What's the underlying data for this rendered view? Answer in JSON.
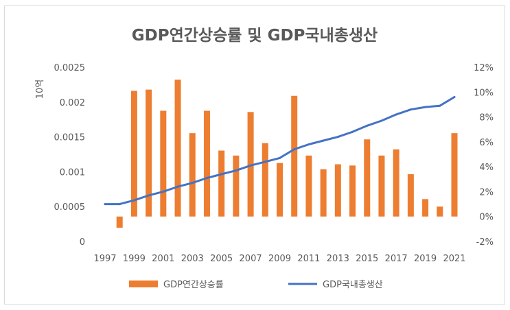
{
  "chart_data": {
    "type": "bar+line",
    "title": "GDP연간상승률 및 GDP국내총생산",
    "left_axis_label": "10억",
    "categories": [
      1997,
      1998,
      1999,
      2000,
      2001,
      2002,
      2003,
      2004,
      2005,
      2006,
      2007,
      2008,
      2009,
      2010,
      2011,
      2012,
      2013,
      2014,
      2015,
      2016,
      2017,
      2018,
      2019,
      2020,
      2021
    ],
    "x_tick_labels": [
      "1997",
      "1999",
      "2001",
      "2003",
      "2005",
      "2007",
      "2009",
      "2011",
      "2013",
      "2015",
      "2017",
      "2019",
      "2021"
    ],
    "series": [
      {
        "name": "GDP연간상승률",
        "type": "bar",
        "axis": "right",
        "color": "#ED7D31",
        "values": [
          null,
          -0.9,
          10.1,
          10.2,
          8.5,
          11.0,
          6.7,
          8.5,
          5.3,
          4.9,
          8.4,
          5.9,
          4.3,
          9.7,
          4.9,
          3.8,
          4.2,
          4.1,
          6.2,
          4.9,
          5.4,
          3.4,
          1.4,
          0.8,
          6.7
        ]
      },
      {
        "name": "GDP국내총생산",
        "type": "line",
        "axis": "right",
        "color": "#4472C4",
        "values": [
          1.0,
          1.0,
          1.3,
          1.7,
          2.0,
          2.4,
          2.7,
          3.1,
          3.4,
          3.7,
          4.1,
          4.4,
          4.7,
          5.4,
          5.8,
          6.1,
          6.4,
          6.8,
          7.3,
          7.7,
          8.2,
          8.6,
          8.8,
          8.9,
          9.6
        ]
      }
    ],
    "left_axis": {
      "min": 0,
      "max": 0.0025,
      "step": 0.0005,
      "tick_labels": [
        "0",
        "0.0005",
        "0.001",
        "0.0015",
        "0.002",
        "0.0025"
      ]
    },
    "right_axis": {
      "min": -2,
      "max": 12,
      "step": 2,
      "tick_labels": [
        "-2%",
        "0%",
        "2%",
        "4%",
        "6%",
        "8%",
        "10%",
        "12%"
      ]
    },
    "legend_position": "bottom",
    "grid": false
  }
}
